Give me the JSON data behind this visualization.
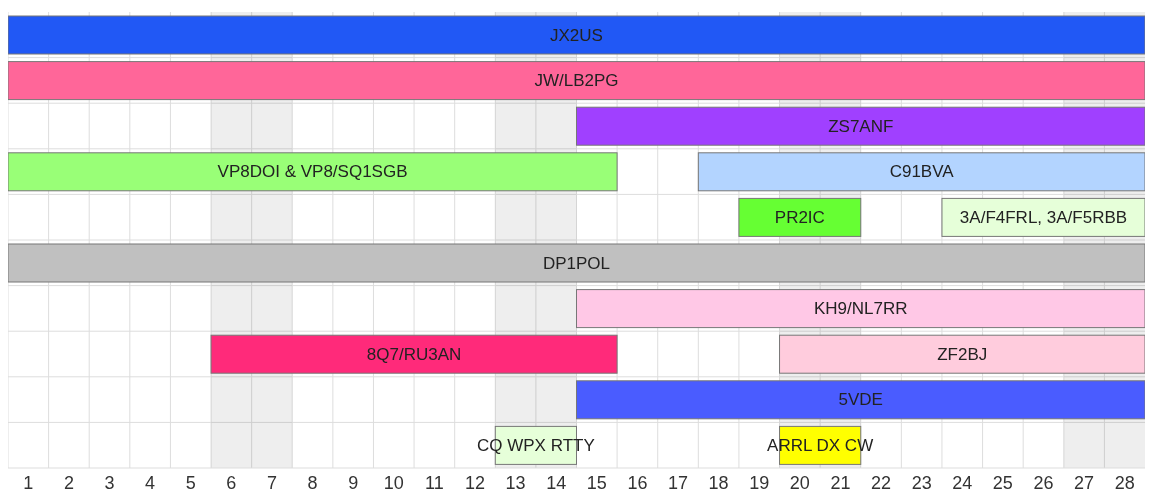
{
  "chart_data": {
    "type": "bar",
    "orientation": "horizontal",
    "categories": [
      null,
      null,
      null,
      null,
      null,
      null,
      null,
      null,
      null,
      null
    ],
    "series": [
      {
        "name": "JX2US",
        "color": "#2158f5",
        "base": [
          0.5,
          null,
          null,
          null,
          null,
          null,
          null,
          null,
          null,
          null
        ],
        "values": [
          28,
          null,
          null,
          null,
          null,
          null,
          null,
          null,
          null,
          null
        ]
      },
      {
        "name": "JW/LB2PG",
        "color": "#ff6699",
        "base": [
          null,
          0.5,
          null,
          null,
          null,
          null,
          null,
          null,
          null,
          null
        ],
        "values": [
          null,
          28,
          null,
          null,
          null,
          null,
          null,
          null,
          null,
          null
        ]
      },
      {
        "name": "ZS7ANF",
        "color": "#a040ff",
        "base": [
          null,
          null,
          14.5,
          null,
          null,
          null,
          null,
          null,
          null,
          null
        ],
        "values": [
          null,
          null,
          14,
          null,
          null,
          null,
          null,
          null,
          null,
          null
        ]
      },
      {
        "name": "VP8DOI & VP8/SQ1SGB",
        "color": "#99ff77",
        "base": [
          null,
          null,
          null,
          0.5,
          null,
          null,
          null,
          null,
          null,
          null
        ],
        "values": [
          null,
          null,
          null,
          15,
          null,
          null,
          null,
          null,
          null,
          null
        ]
      },
      {
        "name": "C91BVA",
        "color": "#b3d4ff",
        "base": [
          null,
          null,
          null,
          17.5,
          null,
          null,
          null,
          null,
          null,
          null
        ],
        "values": [
          null,
          null,
          null,
          11,
          null,
          null,
          null,
          null,
          null,
          null
        ]
      },
      {
        "name": "PR2IC",
        "color": "#66ff33",
        "base": [
          null,
          null,
          null,
          null,
          18.5,
          null,
          null,
          null,
          null,
          null
        ],
        "values": [
          null,
          null,
          null,
          null,
          3,
          null,
          null,
          null,
          null,
          null
        ]
      },
      {
        "name": "3A/F4FRL, 3A/F5RBB",
        "color": "#e6ffd9",
        "base": [
          null,
          null,
          null,
          null,
          23.5,
          null,
          null,
          null,
          null,
          null
        ],
        "values": [
          null,
          null,
          null,
          null,
          5,
          null,
          null,
          null,
          null,
          null
        ]
      },
      {
        "name": "DP1POL",
        "color": "#c0c0c0",
        "base": [
          null,
          null,
          null,
          null,
          null,
          0.5,
          null,
          null,
          null,
          null
        ],
        "values": [
          null,
          null,
          null,
          null,
          null,
          28,
          null,
          null,
          null,
          null
        ]
      },
      {
        "name": "KH9/NL7RR",
        "color": "#ffc8e6",
        "base": [
          null,
          null,
          null,
          null,
          null,
          null,
          14.5,
          null,
          null,
          null
        ],
        "values": [
          null,
          null,
          null,
          null,
          null,
          null,
          14,
          null,
          null,
          null
        ]
      },
      {
        "name": "8Q7/RU3AN",
        "color": "#ff2a7a",
        "base": [
          null,
          null,
          null,
          null,
          null,
          null,
          null,
          5.5,
          null,
          null
        ],
        "values": [
          null,
          null,
          null,
          null,
          null,
          null,
          null,
          10,
          null,
          null
        ]
      },
      {
        "name": "ZF2BJ",
        "color": "#ffccdd",
        "base": [
          null,
          null,
          null,
          null,
          null,
          null,
          null,
          19.5,
          null,
          null
        ],
        "values": [
          null,
          null,
          null,
          null,
          null,
          null,
          null,
          9,
          null,
          null
        ]
      },
      {
        "name": "5VDE",
        "color": "#4a5cff",
        "base": [
          null,
          null,
          null,
          null,
          null,
          null,
          null,
          null,
          14.5,
          null
        ],
        "values": [
          null,
          null,
          null,
          null,
          null,
          null,
          null,
          null,
          14,
          null
        ]
      },
      {
        "name": "CQ WPX RTTY",
        "color": "#e6ffd9",
        "base": [
          null,
          null,
          null,
          null,
          null,
          null,
          null,
          null,
          null,
          12.5
        ],
        "values": [
          null,
          null,
          null,
          null,
          null,
          null,
          null,
          null,
          null,
          2
        ]
      },
      {
        "name": "ARRL DX CW",
        "color": "#ffff00",
        "base": [
          null,
          null,
          null,
          null,
          null,
          null,
          null,
          null,
          null,
          19.5
        ],
        "values": [
          null,
          null,
          null,
          null,
          null,
          null,
          null,
          null,
          null,
          2
        ]
      }
    ],
    "xlim": [
      0.5,
      28.5
    ],
    "xticks": [
      1,
      2,
      3,
      4,
      5,
      6,
      7,
      8,
      9,
      10,
      11,
      12,
      13,
      14,
      15,
      16,
      17,
      18,
      19,
      20,
      21,
      22,
      23,
      24,
      25,
      26,
      27,
      28,
      {
        "value": 1.5,
        "label": null
      },
      {
        "value": 2.5,
        "label": null
      },
      {
        "value": 3.5,
        "label": null
      },
      {
        "value": 4.5,
        "label": null
      },
      {
        "value": 5.5,
        "label": null
      },
      {
        "value": 6.5,
        "label": null
      },
      {
        "value": 7.5,
        "label": null
      },
      {
        "value": 8.5,
        "label": null
      },
      {
        "value": 9.5,
        "label": null
      },
      {
        "value": 10.5,
        "label": null
      },
      {
        "value": 11.5,
        "label": null
      },
      {
        "value": 12.5,
        "label": null
      },
      {
        "value": 13.5,
        "label": null
      },
      {
        "value": 14.5,
        "label": null
      },
      {
        "value": 15.5,
        "label": null
      },
      {
        "value": 16.5,
        "label": null
      },
      {
        "value": 17.5,
        "label": null
      },
      {
        "value": 18.5,
        "label": null
      },
      {
        "value": 19.5,
        "label": null
      },
      {
        "value": 20.5,
        "label": null
      },
      {
        "value": 21.5,
        "label": null
      },
      {
        "value": 22.5,
        "label": null
      },
      {
        "value": 23.5,
        "label": null
      },
      {
        "value": 24.5,
        "label": null
      },
      {
        "value": 25.5,
        "label": null
      },
      {
        "value": 26.5,
        "label": null
      },
      {
        "value": 27.5,
        "label": null
      }
    ],
    "bands": [
      {
        "axis": "x",
        "from": 5.5,
        "to": 7.5,
        "color": "#eeeeee"
      },
      {
        "axis": "x",
        "from": 12.5,
        "to": 14.5,
        "color": "#eeeeee"
      },
      {
        "axis": "x",
        "from": 19.5,
        "to": 21.5,
        "color": "#eeeeee"
      },
      {
        "axis": "x",
        "from": 26.5,
        "to": 28.5,
        "color": "#eeeeee"
      }
    ],
    "grid": true,
    "tick_labels": "x"
  }
}
